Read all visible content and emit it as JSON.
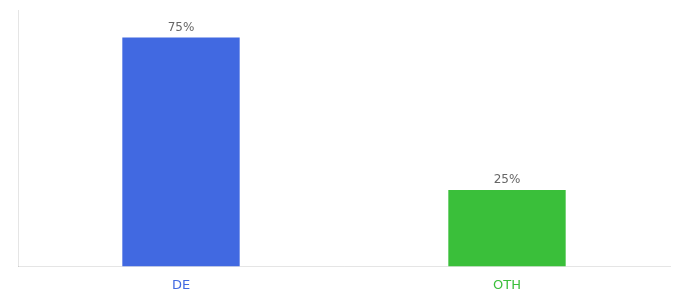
{
  "chart_data": {
    "type": "bar",
    "categories": [
      "DE",
      "OTH"
    ],
    "values": [
      75,
      25
    ],
    "value_labels": [
      "75%",
      "25%"
    ],
    "colors": [
      "#4169e1",
      "#3abf3a"
    ],
    "ylim": [
      0,
      84
    ],
    "grid": false,
    "data_labels": true,
    "tick_labels": "x"
  }
}
